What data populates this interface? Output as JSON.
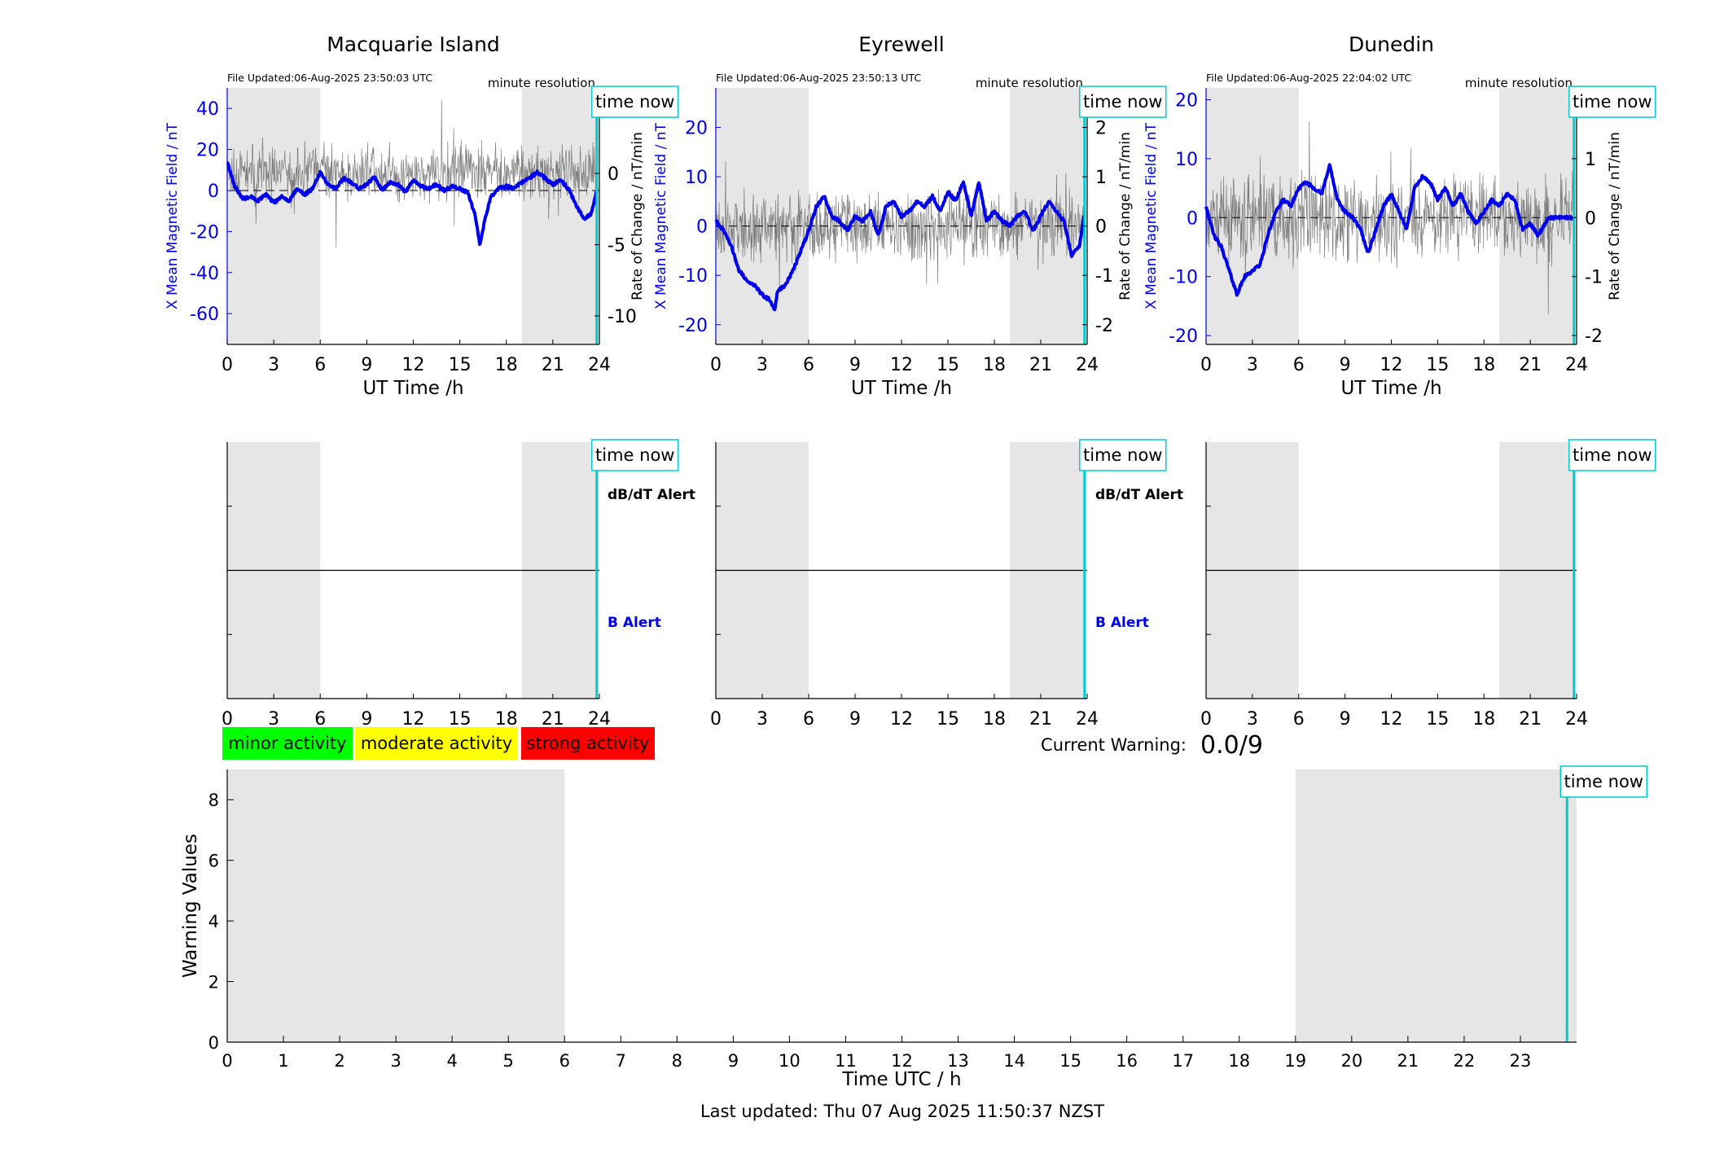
{
  "page": {
    "last_updated": "Last updated: Thu 07 Aug 2025 11:50:37 NZST"
  },
  "labels": {
    "xlabel_top": "UT Time /h",
    "ylabel_left": "X Mean Magnetic Field / nT",
    "ylabel_right": "Rate of Change / nT/min",
    "minute_resolution": "minute resolution",
    "time_now": "time now",
    "dbdt_alert": "dB/dT Alert",
    "b_alert": "B Alert",
    "current_warning_label": "Current Warning:",
    "current_warning_value": "0.0/9"
  },
  "legend": [
    {
      "label": "minor activity",
      "color": "#00ff00"
    },
    {
      "label": "moderate activity",
      "color": "#ffff00"
    },
    {
      "label": "strong activity",
      "color": "#ff0000"
    }
  ],
  "colors": {
    "field_line": "#0000ee",
    "rate_line": "#555555",
    "time_now": "#00cccc",
    "night_shade": "#e6e6e6",
    "axis_left": "#0000ee"
  },
  "chart_data": [
    {
      "type": "line",
      "station": "Macquarie Island",
      "file_updated": "File Updated:06-Aug-2025 23:50:03 UTC",
      "xlabel": "UT Time /h",
      "ylabel": "X Mean Magnetic Field / nT",
      "ylabel_right": "Rate of Change / nT/min",
      "xlim": [
        0,
        24
      ],
      "xticks": [
        0,
        3,
        6,
        9,
        12,
        15,
        18,
        21,
        24
      ],
      "ylim": [
        -75,
        50
      ],
      "yticks": [
        -60,
        -40,
        -20,
        0,
        20,
        40
      ],
      "y2lim": [
        -12,
        6
      ],
      "y2ticks": [
        -10,
        -5,
        0,
        5
      ],
      "night_shading": [
        [
          0,
          6
        ],
        [
          19,
          24
        ]
      ],
      "time_now": 23.83,
      "series": [
        {
          "name": "X Mean Magnetic Field",
          "axis": "left",
          "x": [
            0,
            0.5,
            1,
            1.5,
            2,
            2.5,
            3,
            3.5,
            4,
            4.5,
            5,
            5.5,
            6,
            6.5,
            7,
            7.5,
            8,
            8.5,
            9,
            9.5,
            10,
            10.5,
            11,
            11.5,
            12,
            12.5,
            13,
            13.5,
            14,
            14.5,
            15,
            15.5,
            16,
            16.3,
            16.6,
            17,
            17.5,
            18,
            18.5,
            19,
            19.5,
            20,
            20.5,
            21,
            21.5,
            22,
            22.5,
            23,
            23.5,
            23.83
          ],
          "values": [
            14,
            2,
            -4,
            -3,
            -5,
            -2,
            -6,
            -3,
            -5,
            1,
            -2,
            1,
            9,
            3,
            1,
            6,
            4,
            1,
            3,
            7,
            0,
            4,
            3,
            -1,
            5,
            2,
            1,
            3,
            0,
            2,
            1,
            -1,
            -12,
            -27,
            -15,
            -3,
            1,
            2,
            1,
            4,
            6,
            9,
            6,
            3,
            5,
            1,
            -7,
            -14,
            -11,
            0
          ]
        },
        {
          "name": "Rate of Change",
          "axis": "right",
          "amplitude": 1.6,
          "seed": 11
        }
      ]
    },
    {
      "type": "line",
      "station": "Eyrewell",
      "file_updated": "File Updated:06-Aug-2025 23:50:13 UTC",
      "xlabel": "UT Time /h",
      "ylabel": "X Mean Magnetic Field / nT",
      "ylabel_right": "Rate of Change / nT/min",
      "xlim": [
        0,
        24
      ],
      "xticks": [
        0,
        3,
        6,
        9,
        12,
        15,
        18,
        21,
        24
      ],
      "ylim": [
        -24,
        28
      ],
      "yticks": [
        -20,
        -10,
        0,
        10,
        20
      ],
      "y2lim": [
        -2.4,
        2.8
      ],
      "y2ticks": [
        -2,
        -1,
        0,
        1,
        2
      ],
      "night_shading": [
        [
          0,
          6
        ],
        [
          19,
          24
        ]
      ],
      "time_now": 23.83,
      "series": [
        {
          "name": "X Mean Magnetic Field",
          "axis": "left",
          "x": [
            0,
            0.5,
            1,
            1.5,
            2,
            2.5,
            3,
            3.5,
            3.8,
            4,
            4.5,
            5,
            5.5,
            6,
            6.5,
            7,
            7.5,
            8,
            8.5,
            9,
            9.5,
            10,
            10.5,
            11,
            11.5,
            12,
            12.5,
            13,
            13.5,
            14,
            14.5,
            15,
            15.5,
            16,
            16.5,
            17,
            17.5,
            18,
            18.5,
            19,
            19.5,
            20,
            20.5,
            21,
            21.5,
            22,
            22.5,
            23,
            23.5,
            23.83
          ],
          "values": [
            1,
            -1,
            -4,
            -9,
            -11,
            -12,
            -14,
            -15,
            -17,
            -13,
            -12,
            -9,
            -5,
            -1,
            4,
            6,
            2,
            1,
            -1,
            2,
            1,
            3,
            -2,
            4,
            5,
            2,
            3,
            5,
            4,
            6,
            3,
            7,
            5,
            9,
            2,
            9,
            1,
            3,
            1,
            0,
            2,
            3,
            -1,
            2,
            5,
            3,
            1,
            -6,
            -4,
            3
          ]
        },
        {
          "name": "Rate of Change",
          "axis": "right",
          "amplitude": 0.55,
          "seed": 23
        }
      ]
    },
    {
      "type": "line",
      "station": "Dunedin",
      "file_updated": "File Updated:06-Aug-2025 22:04:02 UTC",
      "xlabel": "UT Time /h",
      "ylabel": "X Mean Magnetic Field / nT",
      "ylabel_right": "Rate of Change / nT/min",
      "xlim": [
        0,
        24
      ],
      "xticks": [
        0,
        3,
        6,
        9,
        12,
        15,
        18,
        21,
        24
      ],
      "ylim": [
        -21.5,
        22
      ],
      "yticks": [
        -20,
        -10,
        0,
        10,
        20
      ],
      "y2lim": [
        -2.15,
        2.2
      ],
      "y2ticks": [
        -2,
        -1,
        0,
        1,
        2
      ],
      "night_shading": [
        [
          0,
          6
        ],
        [
          19,
          24
        ]
      ],
      "time_now": 23.83,
      "series": [
        {
          "name": "X Mean Magnetic Field",
          "axis": "left",
          "x": [
            0,
            0.5,
            1,
            1.5,
            2,
            2.5,
            3,
            3.5,
            4,
            4.5,
            5,
            5.5,
            6,
            6.5,
            7,
            7.5,
            8,
            8.5,
            9,
            9.5,
            10,
            10.5,
            11,
            11.5,
            12,
            12.5,
            13,
            13.5,
            14,
            14.5,
            15,
            15.5,
            16,
            16.5,
            17,
            17.5,
            18,
            18.5,
            19,
            19.5,
            20,
            20.5,
            21,
            21.5,
            22,
            22.2,
            22.5,
            23,
            23.83
          ],
          "values": [
            2,
            -3,
            -5,
            -9,
            -13,
            -10,
            -9,
            -8,
            -3,
            1,
            3,
            2,
            5,
            6,
            5,
            4,
            9,
            3,
            1,
            0,
            -2,
            -6,
            -2,
            2,
            4,
            1,
            -2,
            5,
            7,
            6,
            3,
            5,
            2,
            4,
            1,
            -1,
            1,
            3,
            2,
            4,
            3,
            -2,
            -1,
            -3,
            -1,
            0,
            0,
            0,
            0
          ]
        },
        {
          "name": "Rate of Change",
          "axis": "right",
          "amplitude": 0.6,
          "seed": 37
        }
      ]
    },
    {
      "type": "line",
      "panel": "alert",
      "station": "Macquarie Island",
      "xlim": [
        0,
        24
      ],
      "xticks": [
        0,
        3,
        6,
        9,
        12,
        15,
        18,
        21,
        24
      ],
      "night_shading": [
        [
          0,
          6
        ],
        [
          19,
          24
        ]
      ],
      "time_now": 23.83,
      "show_alert_labels": true
    },
    {
      "type": "line",
      "panel": "alert",
      "station": "Eyrewell",
      "xlim": [
        0,
        24
      ],
      "xticks": [
        0,
        3,
        6,
        9,
        12,
        15,
        18,
        21,
        24
      ],
      "night_shading": [
        [
          0,
          6
        ],
        [
          19,
          24
        ]
      ],
      "time_now": 23.83,
      "show_alert_labels": true
    },
    {
      "type": "line",
      "panel": "alert",
      "station": "Dunedin",
      "xlim": [
        0,
        24
      ],
      "xticks": [
        0,
        3,
        6,
        9,
        12,
        15,
        18,
        21,
        24
      ],
      "night_shading": [
        [
          0,
          6
        ],
        [
          19,
          24
        ]
      ],
      "time_now": 23.83,
      "show_alert_labels": false
    },
    {
      "type": "line",
      "panel": "warning",
      "xlabel": "Time UTC / h",
      "ylabel": "Warning Values",
      "xlim": [
        0,
        24
      ],
      "xticks": [
        0,
        1,
        2,
        3,
        4,
        5,
        6,
        7,
        8,
        9,
        10,
        11,
        12,
        13,
        14,
        15,
        16,
        17,
        18,
        19,
        20,
        21,
        22,
        23
      ],
      "ylim": [
        0,
        9
      ],
      "yticks": [
        0,
        2,
        4,
        6,
        8
      ],
      "night_shading": [
        [
          0,
          6
        ],
        [
          19,
          24
        ]
      ],
      "time_now": 23.83,
      "values": []
    }
  ]
}
